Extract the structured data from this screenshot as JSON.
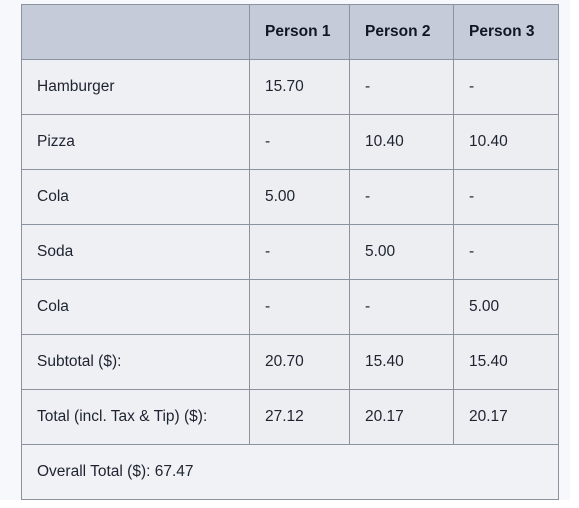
{
  "table": {
    "headers": [
      "",
      "Person 1",
      "Person 2",
      "Person 3"
    ],
    "rows": [
      {
        "item": "Hamburger",
        "values": [
          "15.70",
          "-",
          "-"
        ]
      },
      {
        "item": "Pizza",
        "values": [
          "-",
          "10.40",
          "10.40"
        ]
      },
      {
        "item": "Cola",
        "values": [
          "5.00",
          "-",
          "-"
        ]
      },
      {
        "item": "Soda",
        "values": [
          "-",
          "5.00",
          "-"
        ]
      },
      {
        "item": "Cola",
        "values": [
          "-",
          "-",
          "5.00"
        ]
      },
      {
        "item": "Subtotal ($):",
        "values": [
          "20.70",
          "15.40",
          "15.40"
        ]
      },
      {
        "item": "Total (incl. Tax & Tip) ($):",
        "values": [
          "27.12",
          "20.17",
          "20.17"
        ]
      }
    ],
    "overall_total": "Overall Total ($): 67.47"
  },
  "colors": {
    "header_bg": "#c5cbd9",
    "cell_bg": "#eceef1",
    "border": "#8b93a1"
  }
}
